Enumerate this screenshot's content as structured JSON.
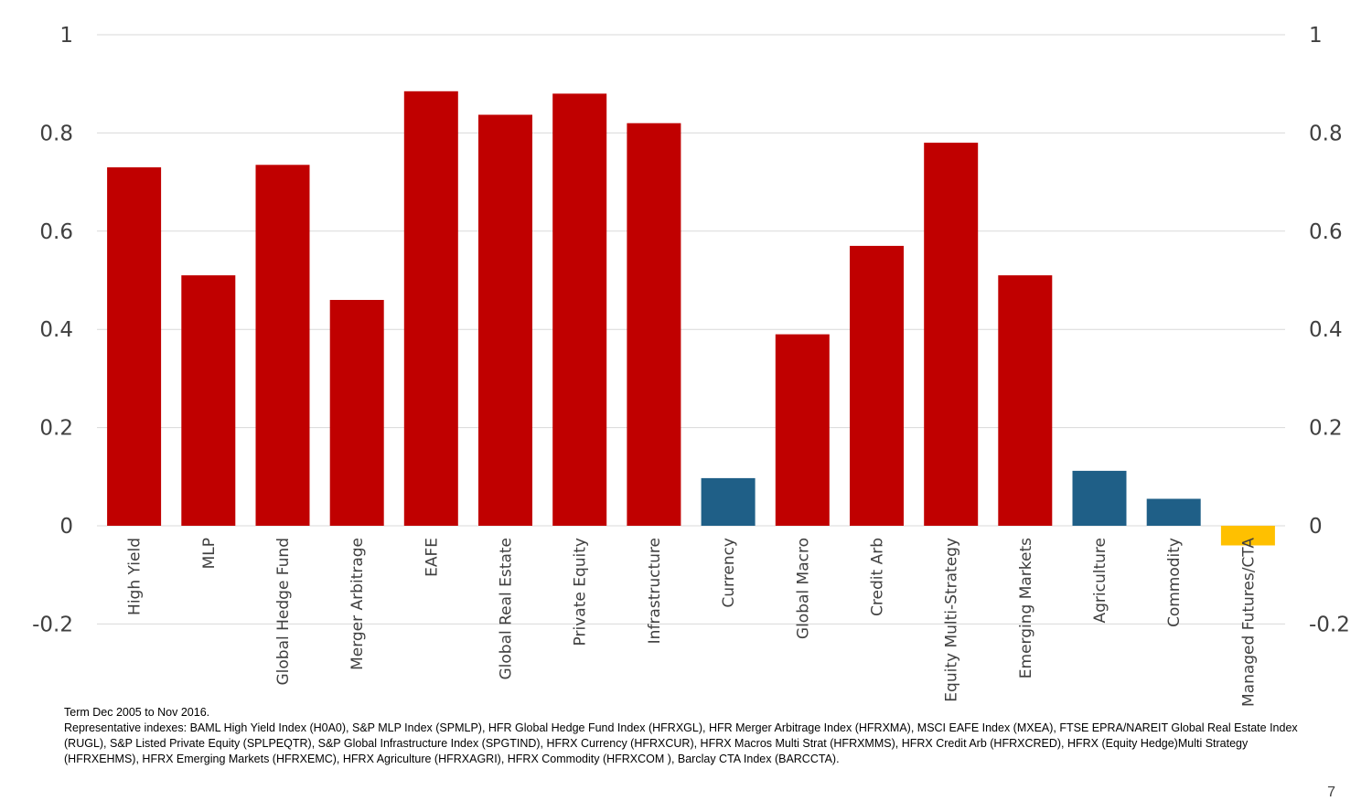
{
  "chart_data": {
    "type": "bar",
    "categories": [
      "High Yield",
      "MLP",
      "Global Hedge Fund",
      "Merger Arbitrage",
      "EAFE",
      "Global Real Estate",
      "Private Equity",
      "Infrastructure",
      "Currency",
      "Global Macro",
      "Credit Arb",
      "Equity Multi-Strategy",
      "Emerging Markets",
      "Agriculture",
      "Commodity",
      "Managed Futures/CTA"
    ],
    "values": [
      0.73,
      0.51,
      0.735,
      0.46,
      0.885,
      0.837,
      0.88,
      0.82,
      0.097,
      0.39,
      0.57,
      0.78,
      0.51,
      0.112,
      0.055,
      -0.04
    ],
    "bar_colors": [
      "#c00000",
      "#c00000",
      "#c00000",
      "#c00000",
      "#c00000",
      "#c00000",
      "#c00000",
      "#c00000",
      "#1f5f87",
      "#c00000",
      "#c00000",
      "#c00000",
      "#c00000",
      "#1f5f87",
      "#1f5f87",
      "#ffc000"
    ],
    "ylim": [
      -0.2,
      1
    ],
    "yticks": [
      {
        "value": 1,
        "label": "1"
      },
      {
        "value": 0.8,
        "label": "0.8"
      },
      {
        "value": 0.6,
        "label": "0.6"
      },
      {
        "value": 0.4,
        "label": "0.4"
      },
      {
        "value": 0.2,
        "label": "0.2"
      },
      {
        "value": 0,
        "label": "0"
      },
      {
        "value": -0.2,
        "label": "-0.2"
      }
    ],
    "secondary_axis": true,
    "grid": true,
    "legend": "none"
  },
  "footnote": {
    "line1": "Term Dec 2005 to Nov 2016.",
    "line2": "Representative indexes: BAML High Yield Index (H0A0), S&P MLP Index (SPMLP), HFR Global Hedge Fund Index (HFRXGL), HFR Merger Arbitrage Index (HFRXMA), MSCI EAFE Index (MXEA), FTSE EPRA/NAREIT Global Real Estate Index (RUGL), S&P Listed Private Equity (SPLPEQTR), S&P Global Infrastructure Index (SPGTIND), HFRX Currency (HFRXCUR), HFRX Macros Multi Strat (HFRXMMS), HFRX Credit Arb (HFRXCRED), HFRX (Equity Hedge)Multi Strategy (HFRXEHMS), HFRX Emerging Markets (HFRXEMC), HFRX Agriculture (HFRXAGRI), HFRX Commodity (HFRXCOM ), Barclay CTA Index (BARCCTA)."
  },
  "page_number": "7"
}
